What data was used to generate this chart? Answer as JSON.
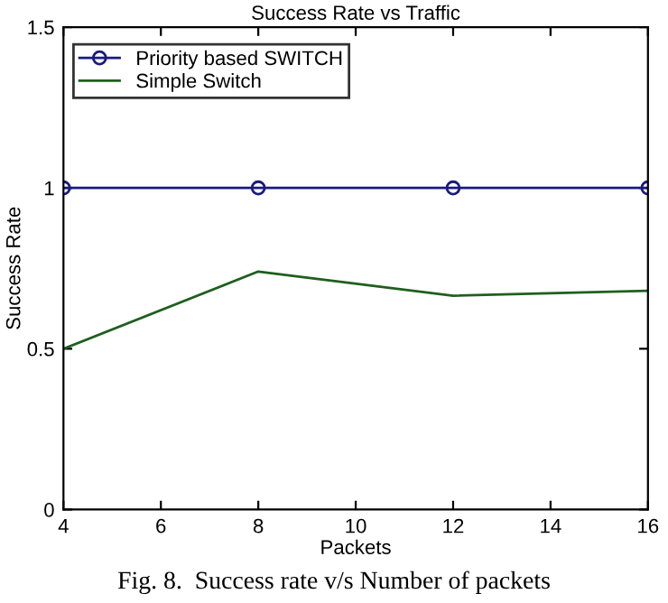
{
  "chart_data": {
    "type": "line",
    "title": "Success Rate vs Traffic",
    "xlabel": "Packets",
    "ylabel": "Success Rate",
    "x": [
      4,
      8,
      12,
      16
    ],
    "series": [
      {
        "name": "Priority based SWITCH",
        "color": "#1a1a80",
        "values": [
          1,
          1,
          1,
          1
        ],
        "marker": "circle"
      },
      {
        "name": "Simple Switch",
        "color": "#1f5f1f",
        "values": [
          0.5,
          0.74,
          0.665,
          0.68
        ],
        "marker": "none"
      }
    ],
    "xlim": [
      4,
      16
    ],
    "xticks": [
      4,
      6,
      8,
      10,
      12,
      14,
      16
    ],
    "ylim": [
      0,
      1.5
    ],
    "yticks": [
      0,
      0.5,
      1,
      1.5
    ],
    "grid": false,
    "legend": "top left",
    "line_style": "solid",
    "annotations": [
      "Fig. 8.  Success rate v/s Number of packets"
    ]
  }
}
